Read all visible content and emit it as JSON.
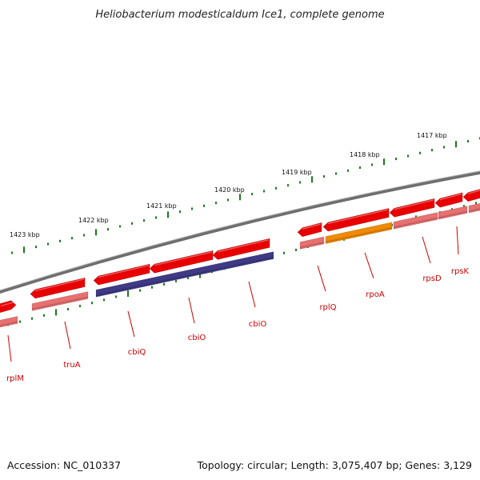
{
  "title": "Heliobacterium modesticaldum Ice1, complete genome",
  "accession": "Accession: NC_010337",
  "topology": "Topology: circular; Length: 3,075,407 bp; Genes: 3,129",
  "colors": {
    "backbone": "#7a7a7a",
    "tick": "#1a7a1a",
    "gene": "#e80000",
    "gene_label": "#cc0000",
    "cds": "#e87070",
    "cds_dark": "#c05050",
    "cds_purple": "#3e3a86",
    "cds_orange": "#f08a00"
  },
  "scale_ticks": [
    {
      "label": "1423 kbp"
    },
    {
      "label": "1422 kbp"
    },
    {
      "label": "1421 kbp"
    },
    {
      "label": "1420 kbp"
    },
    {
      "label": "1419 kbp"
    },
    {
      "label": "1418 kbp"
    },
    {
      "label": "1417 kbp"
    }
  ],
  "genes": [
    {
      "name": "rplM"
    },
    {
      "name": "truA"
    },
    {
      "name": "cbiQ"
    },
    {
      "name": "cbiO"
    },
    {
      "name": "cbiO"
    },
    {
      "name": "rplQ"
    },
    {
      "name": "rpoA"
    },
    {
      "name": "rpsD"
    },
    {
      "name": "rpsK"
    }
  ]
}
